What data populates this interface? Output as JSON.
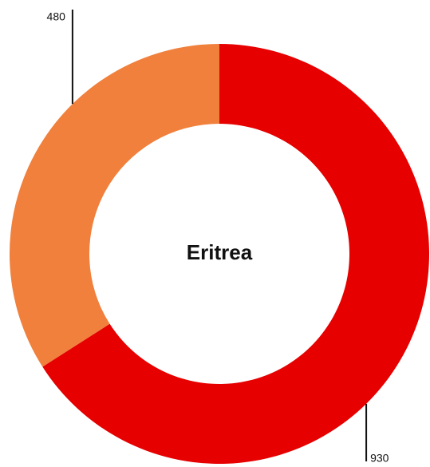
{
  "chart_data": {
    "type": "donut",
    "title": "Eritrea",
    "values": [
      930,
      480
    ],
    "colors": [
      "#e60000",
      "#f0803c"
    ]
  }
}
